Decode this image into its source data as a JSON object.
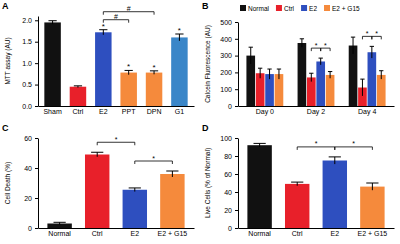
{
  "chart_data": [
    {
      "type": "bar",
      "title": "A",
      "y_label": "MTT assay (AU)",
      "categories": [
        "Sham",
        "Ctrl",
        "E2",
        "PPT",
        "DPN",
        "G1"
      ],
      "values": [
        1.95,
        0.45,
        1.72,
        0.78,
        0.78,
        1.6
      ],
      "errors": [
        0.04,
        0.02,
        0.06,
        0.05,
        0.04,
        0.08
      ],
      "colors": [
        "#111111",
        "#e8202a",
        "#2e4fbf",
        "#f58a3c",
        "#f58a3c",
        "#3a86c8"
      ],
      "ylim": [
        0,
        2.1
      ],
      "yticks": [
        {
          "value": 0,
          "label": "0.0"
        },
        {
          "value": 0.5,
          "label": "0.5"
        },
        {
          "value": 1,
          "label": "1.0"
        },
        {
          "value": 1.5,
          "label": "1.5"
        },
        {
          "value": 2,
          "label": "2.0"
        }
      ],
      "annotations": [
        {
          "text": "*",
          "category": "E2"
        },
        {
          "text": "*",
          "category": "PPT"
        },
        {
          "text": "*",
          "category": "DPN"
        },
        {
          "text": "*",
          "category": "G1"
        },
        {
          "text": "#",
          "from": "E2",
          "to": "PPT"
        },
        {
          "text": "#",
          "from": "E2",
          "to": "DPN"
        }
      ]
    },
    {
      "type": "bar",
      "title": "B",
      "y_label": "Calcein Fluorescence (AU)",
      "categories": [
        "Day 0",
        "Day 2",
        "Day 4"
      ],
      "series": [
        {
          "name": "Normal",
          "color": "#111111",
          "values": [
            300,
            375,
            360
          ],
          "errors": [
            50,
            25,
            50
          ]
        },
        {
          "name": "Ctrl",
          "color": "#e8202a",
          "values": [
            195,
            170,
            110
          ],
          "errors": [
            30,
            25,
            50
          ]
        },
        {
          "name": "E2",
          "color": "#2e4fbf",
          "values": [
            190,
            265,
            320
          ],
          "errors": [
            30,
            20,
            35
          ]
        },
        {
          "name": "E2 + G15",
          "color": "#f58a3c",
          "values": [
            190,
            185,
            185
          ],
          "errors": [
            30,
            20,
            25
          ]
        }
      ],
      "ylim": [
        0,
        500
      ],
      "yticks": [
        0,
        100,
        200,
        300,
        400,
        500
      ],
      "legend": "top",
      "annotations": [
        {
          "text": "*",
          "group": "Day 2",
          "from": "Ctrl",
          "to": "E2"
        },
        {
          "text": "*",
          "group": "Day 2",
          "from": "E2",
          "to": "E2 + G15"
        },
        {
          "text": "*",
          "group": "Day 4",
          "from": "Ctrl",
          "to": "E2"
        },
        {
          "text": "*",
          "group": "Day 4",
          "from": "E2",
          "to": "E2 + G15"
        }
      ]
    },
    {
      "type": "bar",
      "title": "C",
      "y_label": "Cell Death (%)",
      "categories": [
        "Normal",
        "Ctrl",
        "E2",
        "E2 + G15"
      ],
      "values": [
        3,
        49,
        25.5,
        36
      ],
      "errors": [
        0.8,
        1.5,
        1.2,
        2
      ],
      "colors": [
        "#111111",
        "#e8202a",
        "#2e4fbf",
        "#f58a3c"
      ],
      "ylim": [
        0,
        60
      ],
      "yticks": [
        0,
        20,
        40,
        60
      ],
      "annotations": [
        {
          "text": "*",
          "from": "Ctrl",
          "to": "E2"
        },
        {
          "text": "*",
          "from": "E2",
          "to": "E2 + G15"
        }
      ]
    },
    {
      "type": "bar",
      "title": "D",
      "y_label": "Live Cells (% of Normal)",
      "categories": [
        "Normal",
        "Ctrl",
        "E2",
        "E2 + G15"
      ],
      "values": [
        92,
        49,
        75,
        46
      ],
      "errors": [
        2,
        2,
        4,
        4
      ],
      "colors": [
        "#111111",
        "#e8202a",
        "#2e4fbf",
        "#f58a3c"
      ],
      "ylim": [
        0,
        100
      ],
      "yticks": [
        0,
        20,
        40,
        60,
        80,
        100
      ],
      "annotations": [
        {
          "text": "*",
          "from": "Ctrl",
          "to": "E2"
        },
        {
          "text": "*",
          "from": "E2",
          "to": "E2 + G15"
        }
      ]
    }
  ]
}
